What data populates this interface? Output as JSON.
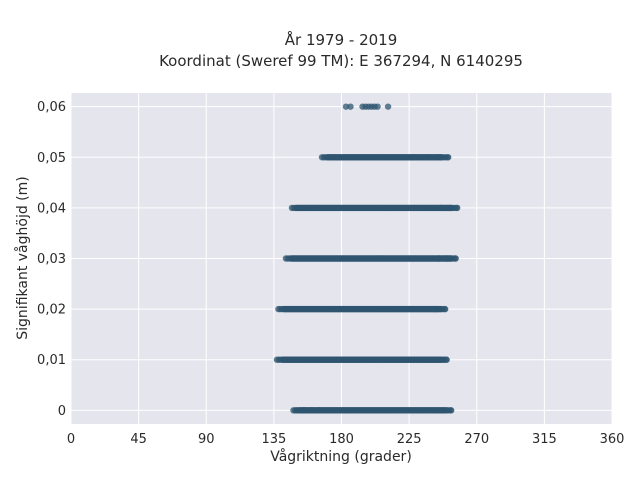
{
  "chart_data": {
    "type": "scatter",
    "title_line1": "År 1979 - 2019",
    "title_line2": "Koordinat (Sweref 99 TM): E 367294, N 6140295",
    "xlabel": "Vågriktning (grader)",
    "ylabel": "Signifikant våghöjd (m)",
    "xlim": [
      0,
      360
    ],
    "ylim": [
      -0.0027,
      0.0627
    ],
    "x_ticks": [
      0,
      45,
      90,
      135,
      180,
      225,
      270,
      315,
      360
    ],
    "x_tick_labels": [
      "0",
      "45",
      "90",
      "135",
      "180",
      "225",
      "270",
      "315",
      "360"
    ],
    "y_ticks": [
      0,
      0.01,
      0.02,
      0.03,
      0.04,
      0.05,
      0.06
    ],
    "y_tick_labels": [
      "0",
      "0,01",
      "0,02",
      "0,03",
      "0,04",
      "0,05",
      "0,06"
    ],
    "grid": true,
    "marker_color": "#2f5570",
    "background_color": "#e5e5ee",
    "rows": [
      {
        "y": 0.0,
        "x_min": 148,
        "x_max": 253,
        "scattered_x": [
          150,
          155,
          160,
          165,
          250,
          253
        ]
      },
      {
        "y": 0.01,
        "x_min": 137,
        "x_max": 250,
        "scattered_x": [
          248,
          250
        ]
      },
      {
        "y": 0.02,
        "x_min": 138,
        "x_max": 249,
        "scattered_x": [
          242,
          246,
          249
        ]
      },
      {
        "y": 0.03,
        "x_min": 143,
        "x_max": 256,
        "scattered_x": [
          245,
          250,
          253,
          256
        ]
      },
      {
        "y": 0.04,
        "x_min": 147,
        "x_max": 257,
        "scattered_x": [
          150,
          246,
          252,
          257
        ]
      },
      {
        "y": 0.05,
        "x_min": 167,
        "x_max": 251,
        "scattered_x": [
          228,
          238,
          245,
          251
        ]
      },
      {
        "y": 0.06,
        "x_min": 183,
        "x_max": 211,
        "scattered_x": [
          183,
          186,
          194,
          196,
          198,
          200,
          202,
          204,
          211
        ]
      }
    ]
  }
}
